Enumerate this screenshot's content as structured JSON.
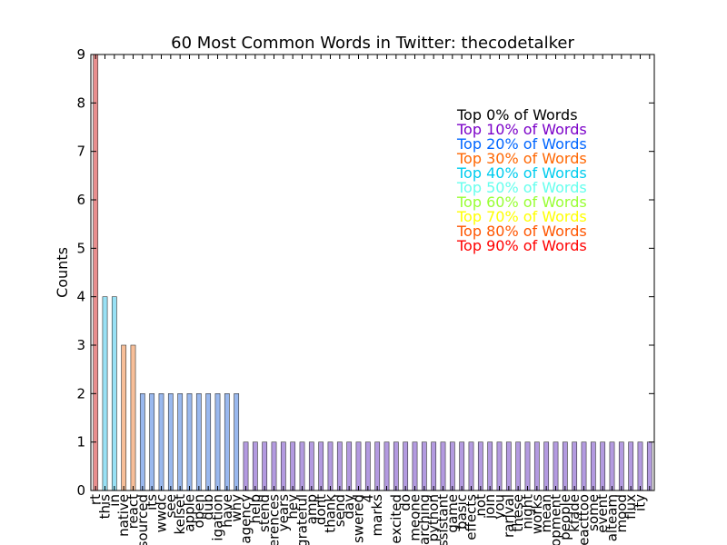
{
  "chart_data": {
    "type": "bar",
    "title": "60 Most Common Words in Twitter: thecodetalker",
    "xlabel": "",
    "ylabel": "Counts",
    "ylim": [
      0,
      9
    ],
    "yticks": [
      "0",
      "1",
      "2",
      "3",
      "4",
      "5",
      "6",
      "7",
      "8",
      "9"
    ],
    "grid": false,
    "categories": [
      "rt",
      "this",
      "in",
      "native",
      "react",
      "sourced",
      "its",
      "wwdc",
      "see",
      "kelset",
      "apple",
      "open",
      "dub",
      "igation",
      "have",
      "why",
      "agency",
      "help",
      "stend",
      "erences",
      "years",
      "hey",
      "grateful",
      "amp",
      "dont",
      "thank",
      "send",
      "day",
      "swered",
      "4",
      "marks",
      "",
      "excited",
      "do",
      "meone",
      "arching",
      "python",
      "ssistant",
      "game",
      "basic",
      "effects",
      "not",
      "join",
      "you",
      "rarjval",
      "these",
      "night",
      "works",
      "mean",
      "opment",
      "people",
      "kfade",
      "eacttoo",
      "some",
      "event",
      "alteam",
      "mood",
      "flux",
      "ity",
      ""
    ],
    "values": [
      9,
      4,
      4,
      3,
      3,
      2,
      2,
      2,
      2,
      2,
      2,
      2,
      2,
      2,
      2,
      2,
      1,
      1,
      1,
      1,
      1,
      1,
      1,
      1,
      1,
      1,
      1,
      1,
      1,
      1,
      1,
      1,
      1,
      1,
      1,
      1,
      1,
      1,
      1,
      1,
      1,
      1,
      1,
      1,
      1,
      1,
      1,
      1,
      1,
      1,
      1,
      1,
      1,
      1,
      1,
      1,
      1,
      1,
      1,
      1
    ],
    "bar_colors": [
      "#e88e8e",
      "#99e1f5",
      "#99e1f5",
      "#f7be98",
      "#f7be98",
      "#99b8ee",
      "#99b8ee",
      "#99b8ee",
      "#99b8ee",
      "#99b8ee",
      "#99b8ee",
      "#99b8ee",
      "#99b8ee",
      "#99b8ee",
      "#99b8ee",
      "#99b8ee",
      "#b39ae0",
      "#b39ae0",
      "#b39ae0",
      "#b39ae0",
      "#b39ae0",
      "#b39ae0",
      "#b39ae0",
      "#b39ae0",
      "#b39ae0",
      "#b39ae0",
      "#b39ae0",
      "#b39ae0",
      "#b39ae0",
      "#b39ae0",
      "#b39ae0",
      "#b39ae0",
      "#b39ae0",
      "#b39ae0",
      "#b39ae0",
      "#b39ae0",
      "#b39ae0",
      "#b39ae0",
      "#b39ae0",
      "#b39ae0",
      "#b39ae0",
      "#b39ae0",
      "#b39ae0",
      "#b39ae0",
      "#b39ae0",
      "#b39ae0",
      "#b39ae0",
      "#b39ae0",
      "#b39ae0",
      "#b39ae0",
      "#b39ae0",
      "#b39ae0",
      "#b39ae0",
      "#b39ae0",
      "#b39ae0",
      "#b39ae0",
      "#b39ae0",
      "#b39ae0",
      "#b39ae0",
      "#b39ae0"
    ],
    "legend": {
      "placement": "top-right",
      "entries": [
        {
          "label": "Top 0% of Words",
          "color": "#000000"
        },
        {
          "label": "Top 10% of Words",
          "color": "#7b00c8"
        },
        {
          "label": "Top 20% of Words",
          "color": "#0066ff"
        },
        {
          "label": "Top 30% of Words",
          "color": "#ff6600"
        },
        {
          "label": "Top 40% of Words",
          "color": "#00ccee"
        },
        {
          "label": "Top 50% of Words",
          "color": "#66ffee"
        },
        {
          "label": "Top 60% of Words",
          "color": "#99ff33"
        },
        {
          "label": "Top 70% of Words",
          "color": "#ffff00"
        },
        {
          "label": "Top 80% of Words",
          "color": "#ff5500"
        },
        {
          "label": "Top 90% of Words",
          "color": "#ff0000"
        }
      ]
    }
  }
}
